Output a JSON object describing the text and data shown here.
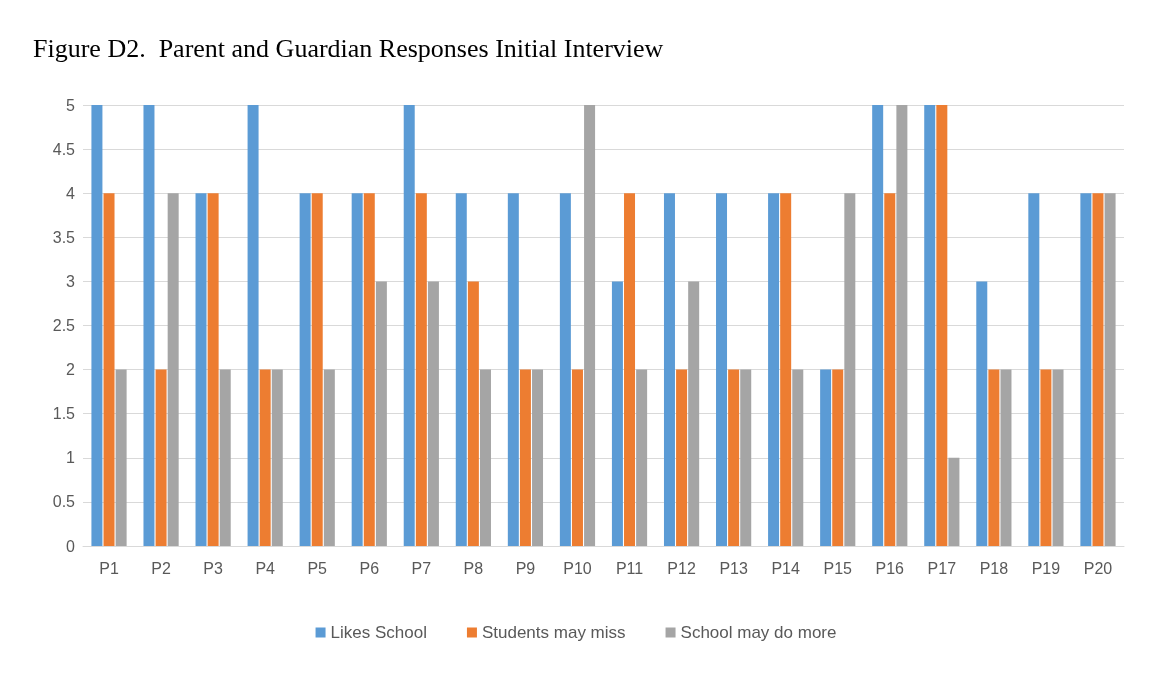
{
  "chart_data": {
    "type": "bar",
    "title": "Figure D2.  Parent and Guardian Responses Initial Interview",
    "categories": [
      "P1",
      "P2",
      "P3",
      "P4",
      "P5",
      "P6",
      "P7",
      "P8",
      "P9",
      "P10",
      "P11",
      "P12",
      "P13",
      "P14",
      "P15",
      "P16",
      "P17",
      "P18",
      "P19",
      "P20"
    ],
    "series": [
      {
        "name": "Likes School",
        "color": "#5b9bd5",
        "values": [
          5,
          5,
          4,
          5,
          4,
          4,
          5,
          4,
          4,
          4,
          3,
          4,
          4,
          4,
          2,
          5,
          5,
          3,
          4,
          4
        ]
      },
      {
        "name": "Students may miss",
        "color": "#ed7d31",
        "values": [
          4,
          2,
          4,
          2,
          4,
          4,
          4,
          3,
          2,
          2,
          4,
          2,
          2,
          4,
          2,
          4,
          5,
          2,
          2,
          4
        ]
      },
      {
        "name": "School may do more",
        "color": "#a5a5a5",
        "values": [
          2,
          4,
          2,
          2,
          2,
          3,
          3,
          2,
          2,
          5,
          2,
          3,
          2,
          2,
          4,
          5,
          1,
          2,
          2,
          4
        ]
      }
    ],
    "ylim": [
      0,
      5
    ],
    "yticks": [
      0,
      0.5,
      1,
      1.5,
      2,
      2.5,
      3,
      3.5,
      4,
      4.5,
      5
    ],
    "grid": "y",
    "legend": "bottom"
  }
}
